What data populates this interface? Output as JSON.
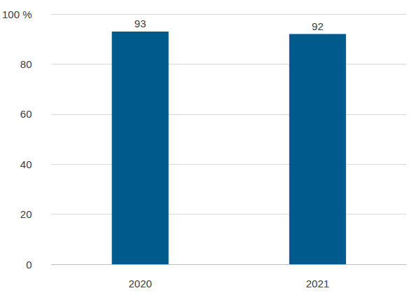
{
  "chart_data": {
    "type": "bar",
    "categories": [
      "2020",
      "2021"
    ],
    "values": [
      93,
      92
    ],
    "color": "#005a8c",
    "ylim": [
      0,
      100
    ],
    "yticks": [
      0,
      20,
      40,
      60,
      80,
      {
        "value": 100,
        "label": "100 %"
      }
    ],
    "grid": true,
    "data_labels": true
  }
}
